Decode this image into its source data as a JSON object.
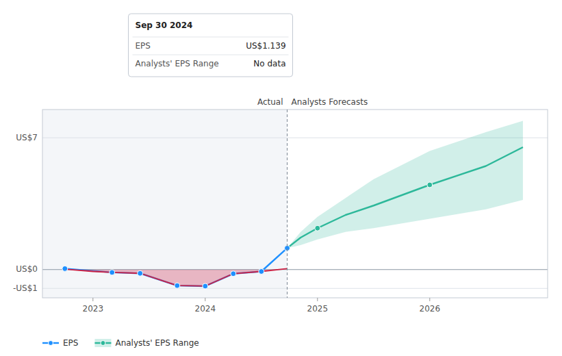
{
  "chart_data": {
    "type": "line",
    "xlim": [
      2022.55,
      2027.05
    ],
    "xticks": [
      2023,
      2024,
      2025,
      2026
    ],
    "ylim": [
      -1.5,
      8.5
    ],
    "yticks": [
      {
        "value": 7,
        "label": "US$7"
      },
      {
        "value": 0,
        "label": "US$0"
      },
      {
        "value": -1,
        "label": "-US$1"
      }
    ],
    "grid": true,
    "legend": "bottom left",
    "series": [
      {
        "name": "EPS",
        "color": "#1e90ff",
        "marker": "circle",
        "x": [
          2022.75,
          2023.17,
          2023.42,
          2023.75,
          2024.0,
          2024.25,
          2024.5,
          2024.73
        ],
        "values": [
          0.05,
          -0.15,
          -0.2,
          -0.85,
          -0.88,
          -0.22,
          -0.1,
          1.139
        ]
      },
      {
        "type": "area",
        "color": "#cc2244",
        "x": [
          2022.75,
          2023.0,
          2023.17,
          2023.42,
          2023.75,
          2024.0,
          2024.25,
          2024.5,
          2024.73
        ],
        "values": [
          0.02,
          -0.1,
          -0.15,
          -0.2,
          -0.85,
          -0.88,
          -0.22,
          -0.1,
          0.05
        ]
      },
      {
        "name": "Analysts' EPS Range",
        "type": "band",
        "color": "#2db89a",
        "x": [
          2024.73,
          2024.85,
          2025.0,
          2025.25,
          2025.5,
          2026.0,
          2026.5,
          2026.83
        ],
        "values": [
          1.139,
          1.7,
          2.2,
          2.9,
          3.4,
          4.5,
          5.5,
          6.5
        ],
        "lower": [
          1.139,
          1.3,
          1.6,
          2.0,
          2.2,
          2.7,
          3.2,
          3.7
        ],
        "upper": [
          1.139,
          2.0,
          2.8,
          3.8,
          4.8,
          6.3,
          7.3,
          7.9
        ]
      },
      {
        "type": "scatter",
        "color": "#2db89a",
        "marker": "circle",
        "x": [
          2025.0,
          2026.0
        ],
        "values": [
          2.2,
          4.5
        ]
      }
    ],
    "annotations": [
      {
        "x": 2024.73,
        "left_text": "Actual",
        "right_text": "Analysts Forecasts"
      },
      {
        "x": 2024.73,
        "title": "Sep 30 2024",
        "rows": [
          {
            "label": "EPS",
            "text": "US$1.139"
          },
          {
            "label": "Analysts' EPS Range",
            "text": "No data"
          }
        ]
      }
    ]
  }
}
